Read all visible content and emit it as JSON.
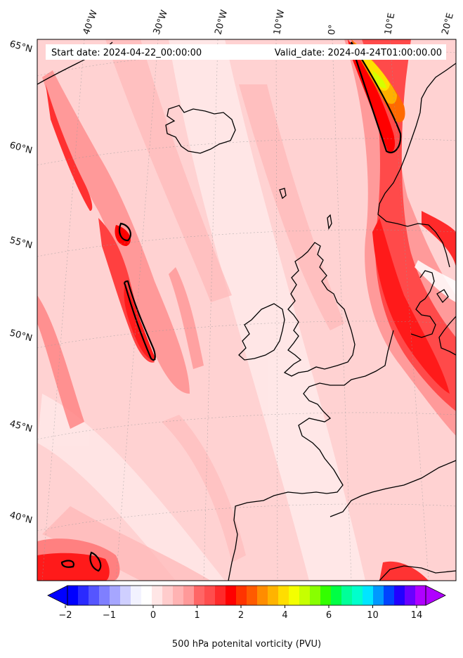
{
  "header": {
    "start_date": "Start date: 2024-04-22_00:00:00",
    "valid_date": "Valid_date: 2024-04-24T01:00:00.00"
  },
  "map": {
    "lon_labels": [
      "40°W",
      "30°W",
      "20°W",
      "10°W",
      "0°",
      "10°E",
      "20°E"
    ],
    "lat_labels": [
      "65°N",
      "60°N",
      "55°N",
      "50°N",
      "45°N",
      "40°N"
    ],
    "background_color": "#ffd0d0",
    "coastline_color": "#000000"
  },
  "colorbar": {
    "ticks": [
      "−2",
      "−1",
      "0",
      "1",
      "2",
      "4",
      "6",
      "10",
      "14"
    ],
    "label": "500 hPa potenital vorticity (PVU)",
    "colors": [
      "#0000ff",
      "#2a2aff",
      "#5555ff",
      "#7f7fff",
      "#a6a6ff",
      "#cfcfff",
      "#f2f2ff",
      "#ffffff",
      "#ffe6e6",
      "#ffcccc",
      "#ffb3b3",
      "#ff9999",
      "#ff6666",
      "#ff4d4d",
      "#ff2a2a",
      "#ff0000",
      "#ff3300",
      "#ff5a00",
      "#ff8c00",
      "#ffb300",
      "#ffdd00",
      "#f4ff00",
      "#c6ff00",
      "#88ff00",
      "#33ff00",
      "#00ff44",
      "#00ff99",
      "#00ffcc",
      "#00e5ff",
      "#0099ff",
      "#0044ff",
      "#2200ff",
      "#6a00ff",
      "#b000ff"
    ]
  }
}
